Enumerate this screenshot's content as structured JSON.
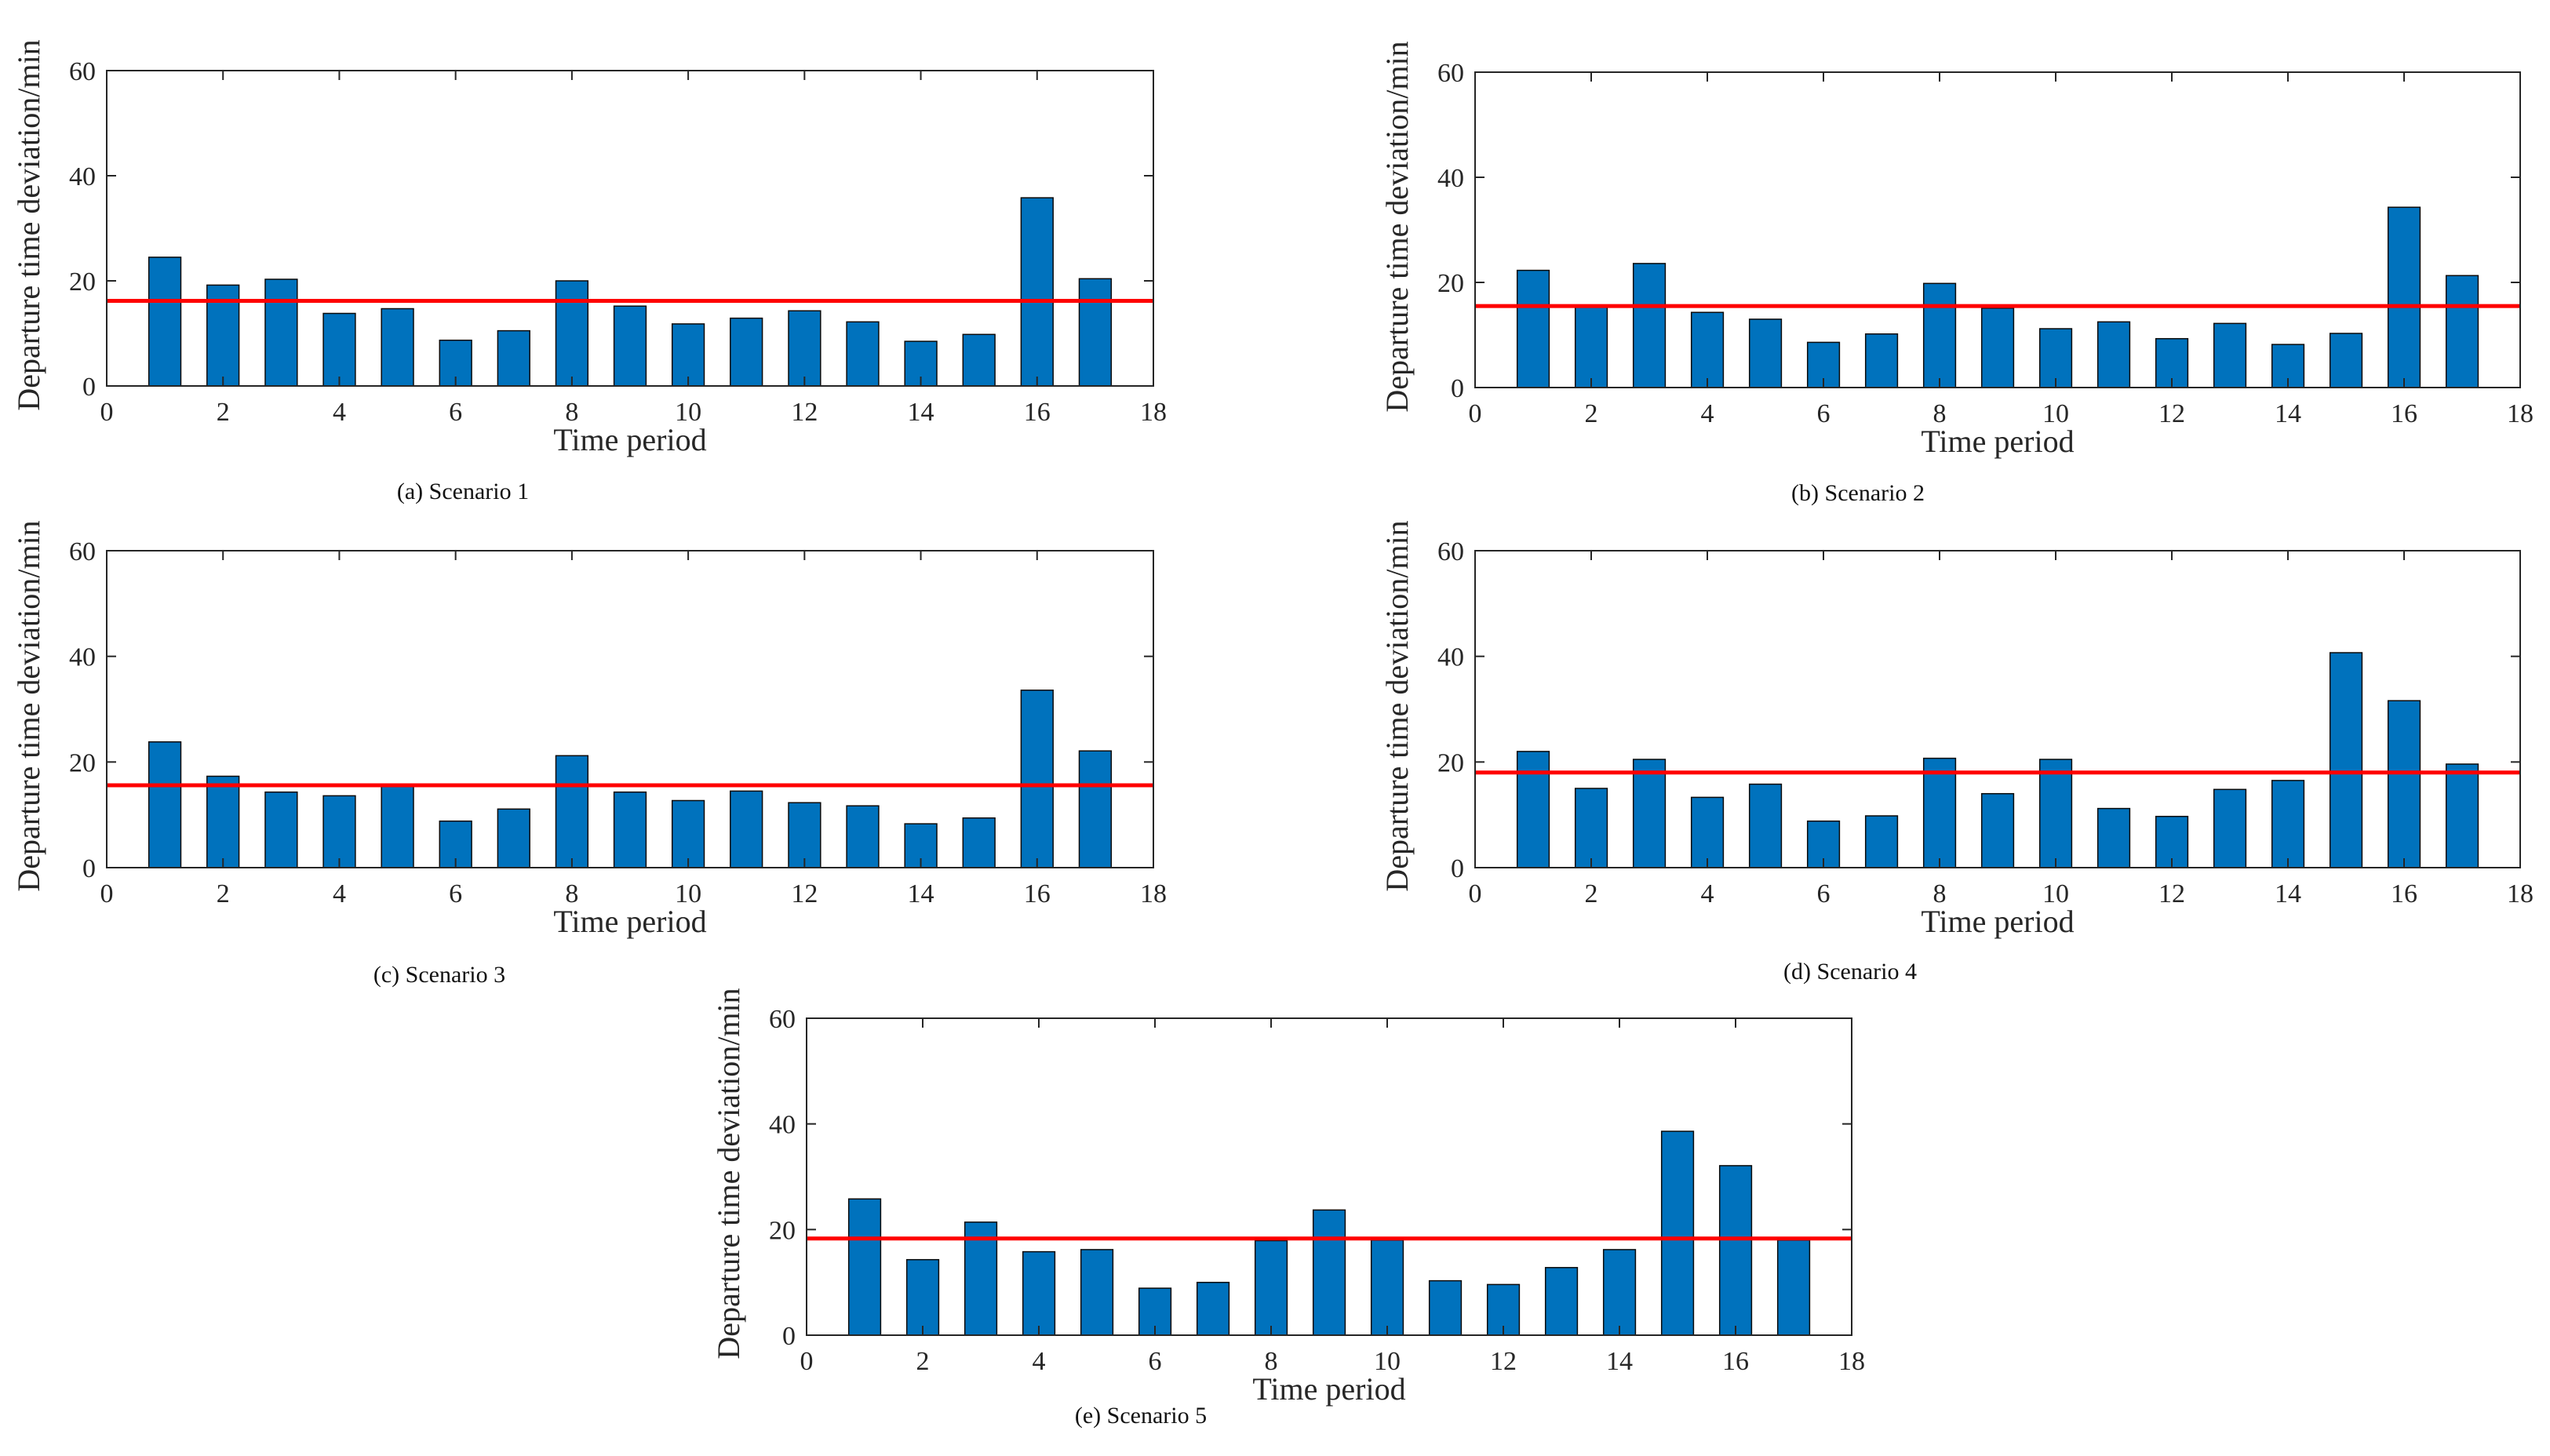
{
  "chart_data": [
    {
      "type": "bar",
      "caption": "(a) Scenario 1",
      "xlabel": "Time period",
      "ylabel": "Departure time deviation/min",
      "xlim": [
        0,
        18
      ],
      "ylim": [
        0,
        60
      ],
      "xticks": [
        "0",
        "2",
        "4",
        "6",
        "8",
        "10",
        "12",
        "14",
        "16",
        "18"
      ],
      "yticks": [
        "0",
        "20",
        "40",
        "60"
      ],
      "categories": [
        1,
        2,
        3,
        4,
        5,
        6,
        7,
        8,
        9,
        10,
        11,
        12,
        13,
        14,
        15,
        16,
        17
      ],
      "values": [
        24.5,
        19.2,
        20.3,
        13.8,
        14.7,
        8.7,
        10.5,
        20.0,
        15.2,
        11.8,
        12.9,
        14.3,
        12.2,
        8.5,
        9.8,
        35.8,
        20.4
      ],
      "reference_line": 16.2,
      "colors": {
        "bar": "#0072BD",
        "line": "#FF0000"
      }
    },
    {
      "type": "bar",
      "caption": "(b) Scenario 2",
      "xlabel": "Time period",
      "ylabel": "Departure time deviation/min",
      "xlim": [
        0,
        18
      ],
      "ylim": [
        0,
        60
      ],
      "xticks": [
        "0",
        "2",
        "4",
        "6",
        "8",
        "10",
        "12",
        "14",
        "16",
        "18"
      ],
      "yticks": [
        "0",
        "20",
        "40",
        "60"
      ],
      "categories": [
        1,
        2,
        3,
        4,
        5,
        6,
        7,
        8,
        9,
        10,
        11,
        12,
        13,
        14,
        15,
        16,
        17
      ],
      "values": [
        22.3,
        15.5,
        23.6,
        14.3,
        13.0,
        8.6,
        10.2,
        19.8,
        15.1,
        11.2,
        12.5,
        9.3,
        12.2,
        8.2,
        10.3,
        34.3,
        21.3
      ],
      "reference_line": 15.5,
      "colors": {
        "bar": "#0072BD",
        "line": "#FF0000"
      }
    },
    {
      "type": "bar",
      "caption": "(c) Scenario 3",
      "xlabel": "Time period",
      "ylabel": "Departure time deviation/min",
      "xlim": [
        0,
        18
      ],
      "ylim": [
        0,
        60
      ],
      "xticks": [
        "0",
        "2",
        "4",
        "6",
        "8",
        "10",
        "12",
        "14",
        "16",
        "18"
      ],
      "yticks": [
        "0",
        "20",
        "40",
        "60"
      ],
      "categories": [
        1,
        2,
        3,
        4,
        5,
        6,
        7,
        8,
        9,
        10,
        11,
        12,
        13,
        14,
        15,
        16,
        17
      ],
      "values": [
        23.8,
        17.3,
        14.3,
        13.6,
        15.5,
        8.8,
        11.1,
        21.2,
        14.3,
        12.7,
        14.5,
        12.3,
        11.7,
        8.3,
        9.4,
        33.6,
        22.1
      ],
      "reference_line": 15.6,
      "colors": {
        "bar": "#0072BD",
        "line": "#FF0000"
      }
    },
    {
      "type": "bar",
      "caption": "(d) Scenario 4",
      "xlabel": "Time period",
      "ylabel": "Departure time deviation/min",
      "xlim": [
        0,
        18
      ],
      "ylim": [
        0,
        60
      ],
      "xticks": [
        "0",
        "2",
        "4",
        "6",
        "8",
        "10",
        "12",
        "14",
        "16",
        "18"
      ],
      "yticks": [
        "0",
        "20",
        "40",
        "60"
      ],
      "categories": [
        1,
        2,
        3,
        4,
        5,
        6,
        7,
        8,
        9,
        10,
        11,
        12,
        13,
        14,
        15,
        16,
        17
      ],
      "values": [
        22.0,
        15.0,
        20.5,
        13.3,
        15.8,
        8.8,
        9.8,
        20.7,
        14.0,
        20.5,
        11.2,
        9.7,
        14.8,
        16.5,
        40.7,
        31.6,
        19.6
      ],
      "reference_line": 18.0,
      "colors": {
        "bar": "#0072BD",
        "line": "#FF0000"
      }
    },
    {
      "type": "bar",
      "caption": "(e) Scenario 5",
      "xlabel": "Time period",
      "ylabel": "Departure time deviation/min",
      "xlim": [
        0,
        18
      ],
      "ylim": [
        0,
        60
      ],
      "xticks": [
        "0",
        "2",
        "4",
        "6",
        "8",
        "10",
        "12",
        "14",
        "16",
        "18"
      ],
      "yticks": [
        "0",
        "20",
        "40",
        "60"
      ],
      "categories": [
        1,
        2,
        3,
        4,
        5,
        6,
        7,
        8,
        9,
        10,
        11,
        12,
        13,
        14,
        15,
        16,
        17
      ],
      "values": [
        25.8,
        14.3,
        21.4,
        15.8,
        16.2,
        8.9,
        10.0,
        17.9,
        23.7,
        18.0,
        10.3,
        9.6,
        12.8,
        16.2,
        38.6,
        32.1,
        18.0
      ],
      "reference_line": 18.3,
      "colors": {
        "bar": "#0072BD",
        "line": "#FF0000"
      }
    }
  ]
}
